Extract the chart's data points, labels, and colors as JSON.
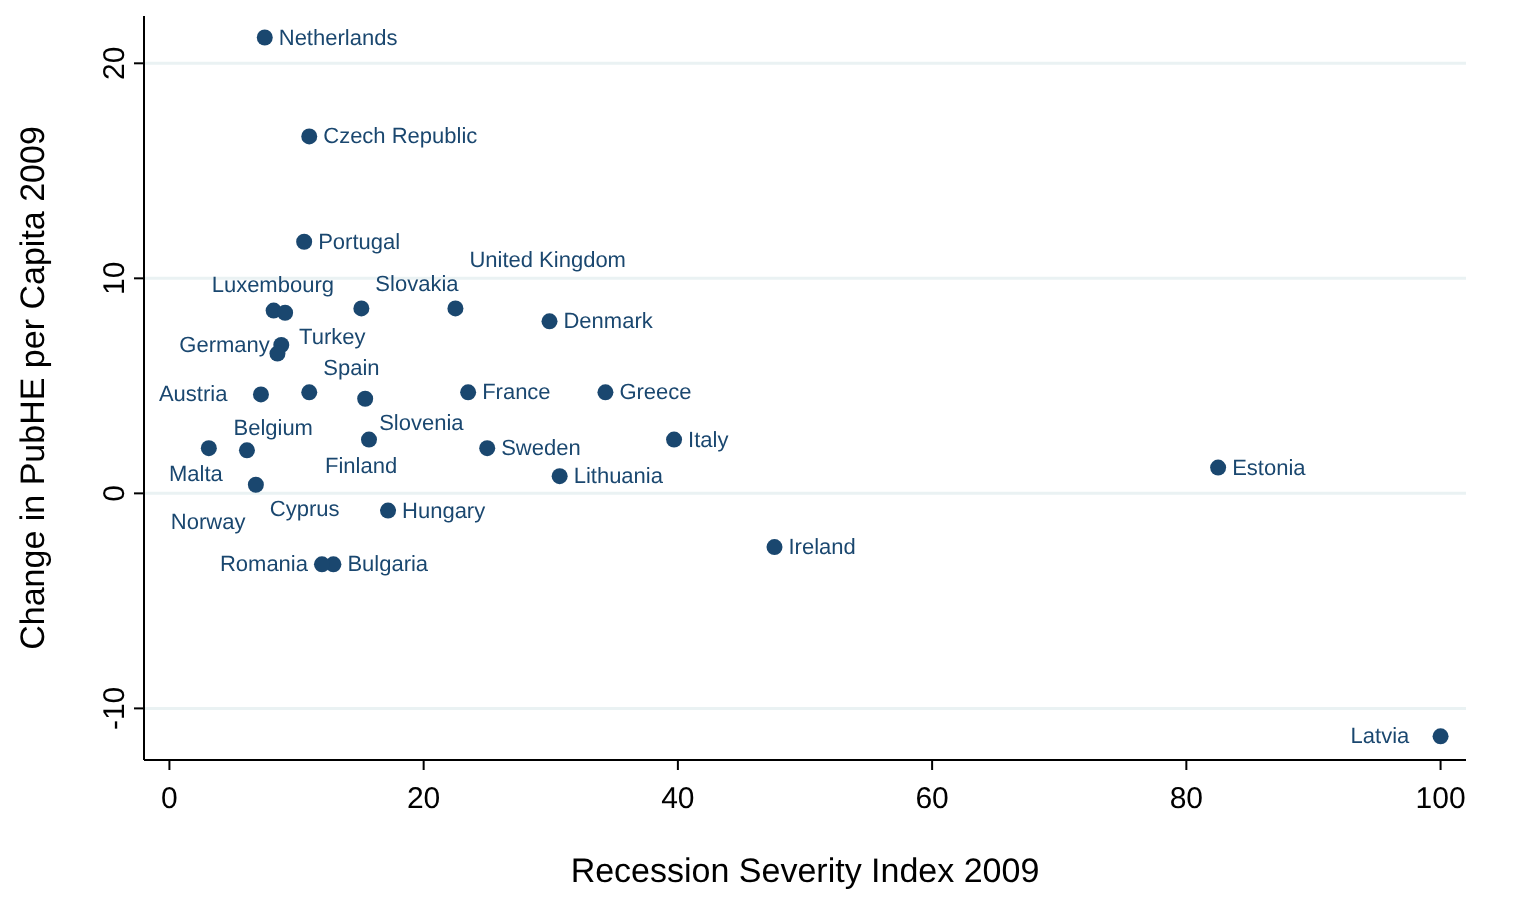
{
  "chart_data": {
    "type": "scatter",
    "xlabel": "Recession Severity Index 2009",
    "ylabel": "Change in PubHE per Capita 2009",
    "xlim": [
      -2,
      102
    ],
    "ylim": [
      -12.4,
      22.2
    ],
    "xticks": [
      0,
      20,
      40,
      60,
      80,
      100
    ],
    "yticks": [
      -10,
      0,
      10,
      20
    ],
    "grid": "y",
    "marker": "circle",
    "series": [
      {
        "color": "#1a476f",
        "x": [
          7.5,
          11.0,
          10.6,
          8.2,
          9.1,
          15.1,
          22.5,
          29.9,
          8.8,
          8.5,
          7.2,
          11.0,
          15.4,
          23.5,
          34.3,
          3.1,
          6.1,
          15.7,
          25.0,
          39.7,
          30.7,
          6.8,
          17.2,
          12.9,
          12.0,
          47.6,
          82.5,
          100
        ],
        "values": [
          21.2,
          16.6,
          11.7,
          8.5,
          8.4,
          8.6,
          8.6,
          8.0,
          6.9,
          6.5,
          4.6,
          4.7,
          4.4,
          4.7,
          4.7,
          2.1,
          2.0,
          2.5,
          2.1,
          2.5,
          0.8,
          0.4,
          -0.8,
          -3.3,
          -3.3,
          -2.5,
          1.2,
          -11.3
        ]
      }
    ],
    "annotations": [
      {
        "text": "Netherlands",
        "x": 7.5,
        "y": 21.2
      },
      {
        "text": "Czech Republic",
        "x": 11.0,
        "y": 16.6
      },
      {
        "text": "Portugal",
        "x": 10.6,
        "y": 11.7
      },
      {
        "text": "Luxembourg",
        "x": 8.2,
        "y": 8.5
      },
      {
        "text": "Turkey",
        "x": 9.1,
        "y": 8.4
      },
      {
        "text": "Slovakia",
        "x": 15.1,
        "y": 8.6
      },
      {
        "text": "United Kingdom",
        "x": 22.5,
        "y": 8.6
      },
      {
        "text": "Denmark",
        "x": 29.9,
        "y": 8.0
      },
      {
        "text": "Germany",
        "x": 8.8,
        "y": 6.9
      },
      {
        "text": "Belgium",
        "x": 8.5,
        "y": 6.5
      },
      {
        "text": "Austria",
        "x": 7.2,
        "y": 4.6
      },
      {
        "text": "Spain",
        "x": 11.0,
        "y": 4.7
      },
      {
        "text": "Slovenia",
        "x": 15.4,
        "y": 4.4
      },
      {
        "text": "France",
        "x": 23.5,
        "y": 4.7
      },
      {
        "text": "Greece",
        "x": 34.3,
        "y": 4.7
      },
      {
        "text": "Norway",
        "x": 3.1,
        "y": 2.1
      },
      {
        "text": "Malta",
        "x": 6.1,
        "y": 2.0
      },
      {
        "text": "Finland",
        "x": 15.7,
        "y": 2.5
      },
      {
        "text": "Sweden",
        "x": 25.0,
        "y": 2.1
      },
      {
        "text": "Italy",
        "x": 39.7,
        "y": 2.5
      },
      {
        "text": "Lithuania",
        "x": 30.7,
        "y": 0.8
      },
      {
        "text": "Cyprus",
        "x": 6.8,
        "y": 0.4
      },
      {
        "text": "Hungary",
        "x": 17.2,
        "y": -0.8
      },
      {
        "text": "Bulgaria",
        "x": 12.9,
        "y": -3.3
      },
      {
        "text": "Romania",
        "x": 12.0,
        "y": -3.3
      },
      {
        "text": "Ireland",
        "x": 47.6,
        "y": -2.5
      },
      {
        "text": "Estonia",
        "x": 82.5,
        "y": 1.2
      },
      {
        "text": "Latvia",
        "x": 100,
        "y": -11.3
      }
    ]
  }
}
